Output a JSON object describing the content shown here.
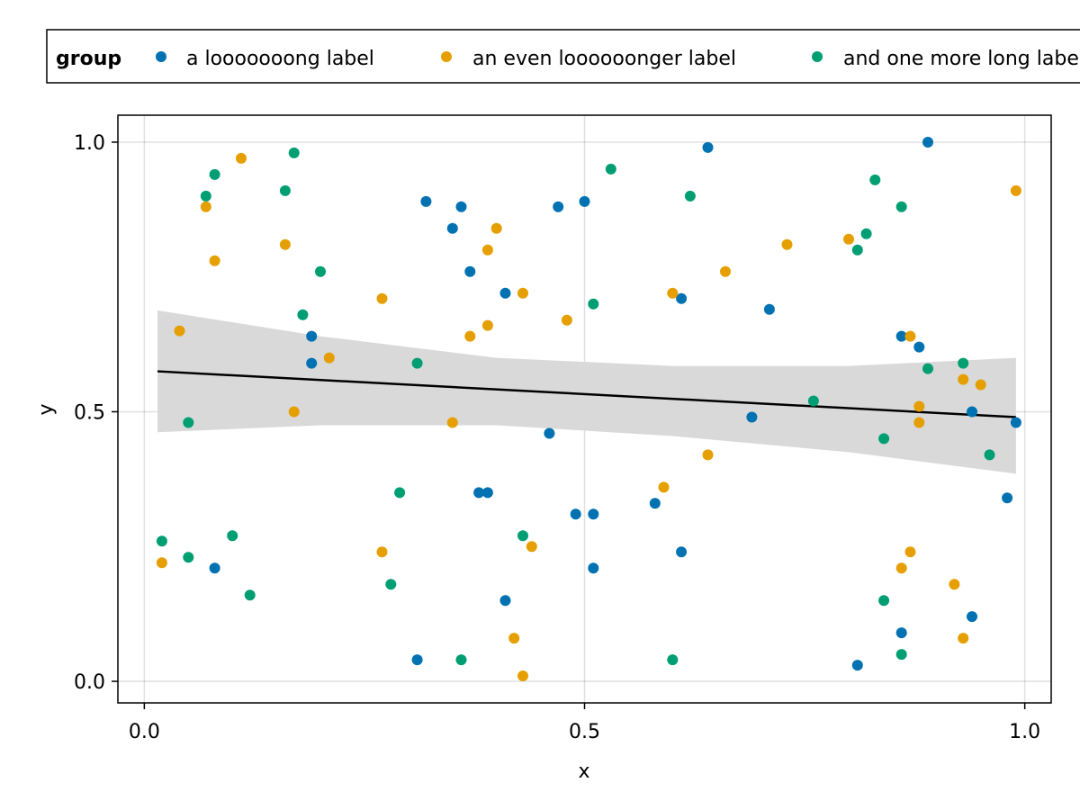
{
  "chart_data": {
    "type": "scatter",
    "xlabel": "x",
    "ylabel": "y",
    "xlim": [
      -0.03,
      1.03
    ],
    "ylim": [
      -0.04,
      1.05
    ],
    "x_ticks": [
      0.0,
      0.5,
      1.0
    ],
    "y_ticks": [
      0.0,
      0.5,
      1.0
    ],
    "x_tick_labels": [
      "0.0",
      "0.5",
      "1.0"
    ],
    "y_tick_labels": [
      "0.0",
      "0.5",
      "1.0"
    ],
    "grid": true,
    "legend": {
      "title": "group",
      "placement": "top"
    },
    "series": [
      {
        "name": "a looooooong label",
        "color": "#0072B2",
        "points": [
          [
            0.32,
            0.89
          ],
          [
            0.36,
            0.88
          ],
          [
            0.35,
            0.84
          ],
          [
            0.37,
            0.76
          ],
          [
            0.41,
            0.72
          ],
          [
            0.47,
            0.88
          ],
          [
            0.5,
            0.89
          ],
          [
            0.64,
            0.99
          ],
          [
            0.89,
            1.0
          ],
          [
            0.19,
            0.64
          ],
          [
            0.19,
            0.59
          ],
          [
            0.61,
            0.71
          ],
          [
            0.71,
            0.69
          ],
          [
            0.86,
            0.64
          ],
          [
            0.88,
            0.62
          ],
          [
            0.94,
            0.5
          ],
          [
            0.99,
            0.48
          ],
          [
            0.69,
            0.49
          ],
          [
            0.46,
            0.46
          ],
          [
            0.38,
            0.35
          ],
          [
            0.39,
            0.35
          ],
          [
            0.49,
            0.31
          ],
          [
            0.51,
            0.31
          ],
          [
            0.58,
            0.33
          ],
          [
            0.98,
            0.34
          ],
          [
            0.08,
            0.21
          ],
          [
            0.51,
            0.21
          ],
          [
            0.61,
            0.24
          ],
          [
            0.41,
            0.15
          ],
          [
            0.94,
            0.12
          ],
          [
            0.86,
            0.09
          ],
          [
            0.31,
            0.04
          ],
          [
            0.81,
            0.03
          ]
        ]
      },
      {
        "name": "an even loooooonger label",
        "color": "#E69F00",
        "points": [
          [
            0.11,
            0.97
          ],
          [
            0.07,
            0.88
          ],
          [
            0.08,
            0.78
          ],
          [
            0.16,
            0.81
          ],
          [
            0.4,
            0.84
          ],
          [
            0.39,
            0.8
          ],
          [
            0.27,
            0.71
          ],
          [
            0.43,
            0.72
          ],
          [
            0.48,
            0.67
          ],
          [
            0.39,
            0.66
          ],
          [
            0.37,
            0.64
          ],
          [
            0.04,
            0.65
          ],
          [
            0.21,
            0.6
          ],
          [
            0.17,
            0.5
          ],
          [
            0.35,
            0.48
          ],
          [
            0.6,
            0.72
          ],
          [
            0.66,
            0.76
          ],
          [
            0.73,
            0.81
          ],
          [
            0.8,
            0.82
          ],
          [
            0.99,
            0.91
          ],
          [
            0.87,
            0.64
          ],
          [
            0.93,
            0.56
          ],
          [
            0.95,
            0.55
          ],
          [
            0.88,
            0.51
          ],
          [
            0.88,
            0.48
          ],
          [
            0.64,
            0.42
          ],
          [
            0.59,
            0.36
          ],
          [
            0.27,
            0.24
          ],
          [
            0.44,
            0.25
          ],
          [
            0.02,
            0.22
          ],
          [
            0.87,
            0.24
          ],
          [
            0.86,
            0.21
          ],
          [
            0.92,
            0.18
          ],
          [
            0.42,
            0.08
          ],
          [
            0.93,
            0.08
          ],
          [
            0.43,
            0.01
          ]
        ]
      },
      {
        "name": "and one more long label",
        "color": "#009E73",
        "points": [
          [
            0.17,
            0.98
          ],
          [
            0.08,
            0.94
          ],
          [
            0.07,
            0.9
          ],
          [
            0.16,
            0.91
          ],
          [
            0.53,
            0.95
          ],
          [
            0.62,
            0.9
          ],
          [
            0.83,
            0.93
          ],
          [
            0.86,
            0.88
          ],
          [
            0.82,
            0.83
          ],
          [
            0.81,
            0.8
          ],
          [
            0.2,
            0.76
          ],
          [
            0.18,
            0.68
          ],
          [
            0.51,
            0.7
          ],
          [
            0.31,
            0.59
          ],
          [
            0.05,
            0.48
          ],
          [
            0.76,
            0.52
          ],
          [
            0.89,
            0.58
          ],
          [
            0.93,
            0.59
          ],
          [
            0.84,
            0.45
          ],
          [
            0.96,
            0.42
          ],
          [
            0.29,
            0.35
          ],
          [
            0.02,
            0.26
          ],
          [
            0.1,
            0.27
          ],
          [
            0.43,
            0.27
          ],
          [
            0.05,
            0.23
          ],
          [
            0.28,
            0.18
          ],
          [
            0.12,
            0.16
          ],
          [
            0.84,
            0.15
          ],
          [
            0.36,
            0.04
          ],
          [
            0.6,
            0.04
          ],
          [
            0.86,
            0.05
          ]
        ]
      }
    ],
    "regression": {
      "color": "#000000",
      "band_color": "#d9d9d9",
      "line": [
        [
          0.015,
          0.575
        ],
        [
          0.99,
          0.49
        ]
      ],
      "band_upper": [
        [
          0.015,
          0.688
        ],
        [
          0.2,
          0.64
        ],
        [
          0.4,
          0.6
        ],
        [
          0.6,
          0.585
        ],
        [
          0.8,
          0.585
        ],
        [
          0.99,
          0.6
        ]
      ],
      "band_lower": [
        [
          0.015,
          0.462
        ],
        [
          0.2,
          0.475
        ],
        [
          0.4,
          0.475
        ],
        [
          0.6,
          0.455
        ],
        [
          0.8,
          0.425
        ],
        [
          0.99,
          0.385
        ]
      ]
    }
  }
}
